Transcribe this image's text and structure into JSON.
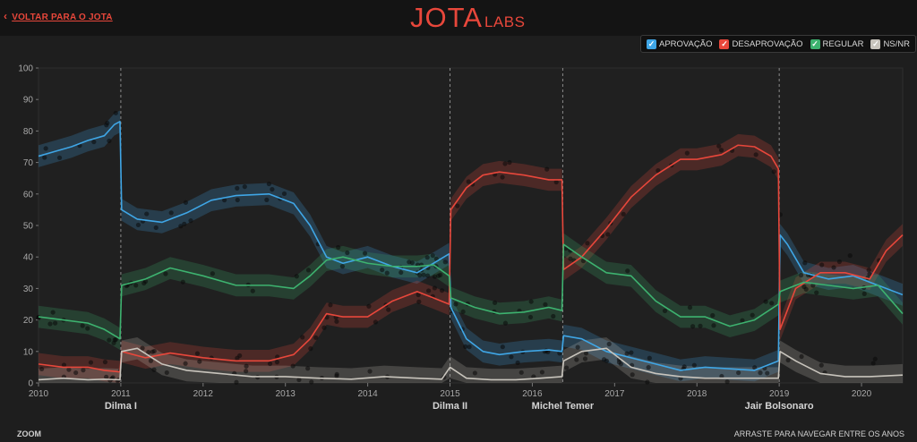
{
  "header": {
    "back_label": "VOLTAR PARA O JOTA",
    "back_icon": "chevron-left-icon",
    "logo_main": "JOTA",
    "logo_sub": "LABS"
  },
  "legend": [
    {
      "label": "APROVAÇÃO",
      "color": "#3fa6e6"
    },
    {
      "label": "DESAPROVAÇÃO",
      "color": "#e8473b"
    },
    {
      "label": "REGULAR",
      "color": "#3db26f"
    },
    {
      "label": "NS/NR",
      "color": "#c8c4bc"
    }
  ],
  "footer": {
    "zoom_label": "ZOOM",
    "drag_hint": "ARRASTE PARA NAVEGAR ENTRE OS ANOS"
  },
  "chart_data": {
    "type": "line",
    "title": "",
    "xlabel": "",
    "ylabel": "",
    "xlim": [
      2010.0,
      2020.5
    ],
    "ylim": [
      0,
      100
    ],
    "y_ticks": [
      0,
      10,
      20,
      30,
      40,
      50,
      60,
      70,
      80,
      90,
      100
    ],
    "x_ticks": [
      "2010",
      "2011",
      "2012",
      "2013",
      "2014",
      "2015",
      "2016",
      "2017",
      "2018",
      "2019",
      "2020"
    ],
    "grid": false,
    "terms": [
      {
        "label": "Dilma I",
        "x": 2011.0
      },
      {
        "label": "Dilma II",
        "x": 2015.0
      },
      {
        "label": "Michel Temer",
        "x": 2016.37
      },
      {
        "label": "Jair Bolsonaro",
        "x": 2019.0
      }
    ],
    "series": [
      {
        "name": "APROVAÇÃO",
        "color": "#3fa6e6",
        "x": [
          2010.0,
          2010.2,
          2010.4,
          2010.6,
          2010.8,
          2010.92,
          2010.99,
          2011.01,
          2011.2,
          2011.5,
          2011.8,
          2012.1,
          2012.4,
          2012.8,
          2013.1,
          2013.3,
          2013.5,
          2013.7,
          2014.0,
          2014.3,
          2014.6,
          2014.8,
          2014.99,
          2015.01,
          2015.2,
          2015.4,
          2015.6,
          2015.9,
          2016.2,
          2016.36,
          2016.38,
          2016.6,
          2016.9,
          2017.2,
          2017.5,
          2017.8,
          2018.1,
          2018.4,
          2018.7,
          2018.99,
          2019.01,
          2019.1,
          2019.3,
          2019.6,
          2019.9,
          2020.2,
          2020.5
        ],
        "y": [
          72,
          73.5,
          75,
          77,
          78.5,
          82,
          83,
          55,
          52,
          51,
          54,
          58,
          59.5,
          60,
          57,
          50,
          40,
          38,
          40,
          37,
          35,
          38,
          41,
          24,
          14,
          10,
          9,
          10,
          10.5,
          10,
          15,
          14,
          10,
          8,
          6,
          4,
          5,
          4.5,
          4,
          7,
          47,
          44,
          35,
          33,
          34,
          31,
          28
        ]
      },
      {
        "name": "DESAPROVAÇÃO",
        "color": "#e8473b",
        "x": [
          2010.0,
          2010.3,
          2010.6,
          2010.8,
          2010.99,
          2011.01,
          2011.3,
          2011.6,
          2012.0,
          2012.4,
          2012.8,
          2013.1,
          2013.3,
          2013.5,
          2013.7,
          2014.0,
          2014.3,
          2014.6,
          2014.8,
          2014.99,
          2015.01,
          2015.2,
          2015.4,
          2015.6,
          2015.9,
          2016.2,
          2016.36,
          2016.38,
          2016.6,
          2016.9,
          2017.2,
          2017.5,
          2017.8,
          2018.0,
          2018.3,
          2018.5,
          2018.7,
          2018.9,
          2018.99,
          2019.01,
          2019.2,
          2019.5,
          2019.8,
          2020.1,
          2020.3,
          2020.5
        ],
        "y": [
          6,
          5,
          5,
          4,
          3.5,
          10,
          8,
          9.5,
          8,
          7,
          7,
          9,
          14,
          22,
          21,
          21,
          26,
          29,
          27,
          25,
          55,
          62,
          66,
          67,
          66,
          64.5,
          64.5,
          36,
          40,
          49,
          59,
          66,
          71,
          71,
          72.5,
          75.5,
          75,
          72,
          68,
          17,
          30,
          35,
          35,
          33,
          42,
          47
        ]
      },
      {
        "name": "REGULAR",
        "color": "#3db26f",
        "x": [
          2010.0,
          2010.3,
          2010.6,
          2010.8,
          2010.99,
          2011.01,
          2011.3,
          2011.6,
          2012.0,
          2012.4,
          2012.8,
          2013.1,
          2013.3,
          2013.5,
          2013.7,
          2014.0,
          2014.3,
          2014.6,
          2014.8,
          2014.99,
          2015.01,
          2015.3,
          2015.6,
          2015.9,
          2016.2,
          2016.36,
          2016.38,
          2016.6,
          2016.9,
          2017.2,
          2017.5,
          2017.8,
          2018.1,
          2018.4,
          2018.7,
          2018.99,
          2019.01,
          2019.3,
          2019.6,
          2019.9,
          2020.2,
          2020.5
        ],
        "y": [
          21,
          20,
          19,
          17,
          14,
          31,
          33,
          36.5,
          34,
          31,
          31,
          30,
          34,
          39,
          40,
          38,
          37,
          37,
          37.5,
          34,
          27,
          24,
          22,
          22.5,
          24,
          23,
          44,
          40,
          35,
          34,
          26,
          21,
          21,
          18,
          20,
          25,
          29,
          32,
          31,
          30,
          31,
          22
        ]
      },
      {
        "name": "NS/NR",
        "color": "#c8c4bc",
        "x": [
          2010.0,
          2010.3,
          2010.6,
          2010.8,
          2010.99,
          2011.01,
          2011.2,
          2011.5,
          2011.8,
          2012.2,
          2012.6,
          2013.0,
          2013.4,
          2013.8,
          2014.2,
          2014.6,
          2014.9,
          2015.0,
          2015.2,
          2015.5,
          2015.8,
          2016.1,
          2016.36,
          2016.38,
          2016.6,
          2016.9,
          2017.2,
          2017.5,
          2017.8,
          2018.1,
          2018.5,
          2018.99,
          2019.01,
          2019.2,
          2019.5,
          2019.8,
          2020.1,
          2020.5
        ],
        "y": [
          1,
          1.5,
          1,
          1.2,
          1,
          10,
          11,
          6,
          4,
          3,
          2,
          2,
          1.5,
          1.2,
          2,
          1.5,
          1.2,
          5,
          1.5,
          1,
          1,
          1.5,
          2,
          7,
          10,
          11,
          5,
          3,
          2,
          1.5,
          1.5,
          1.5,
          10,
          7,
          3,
          2,
          2,
          2.5
        ]
      }
    ]
  }
}
